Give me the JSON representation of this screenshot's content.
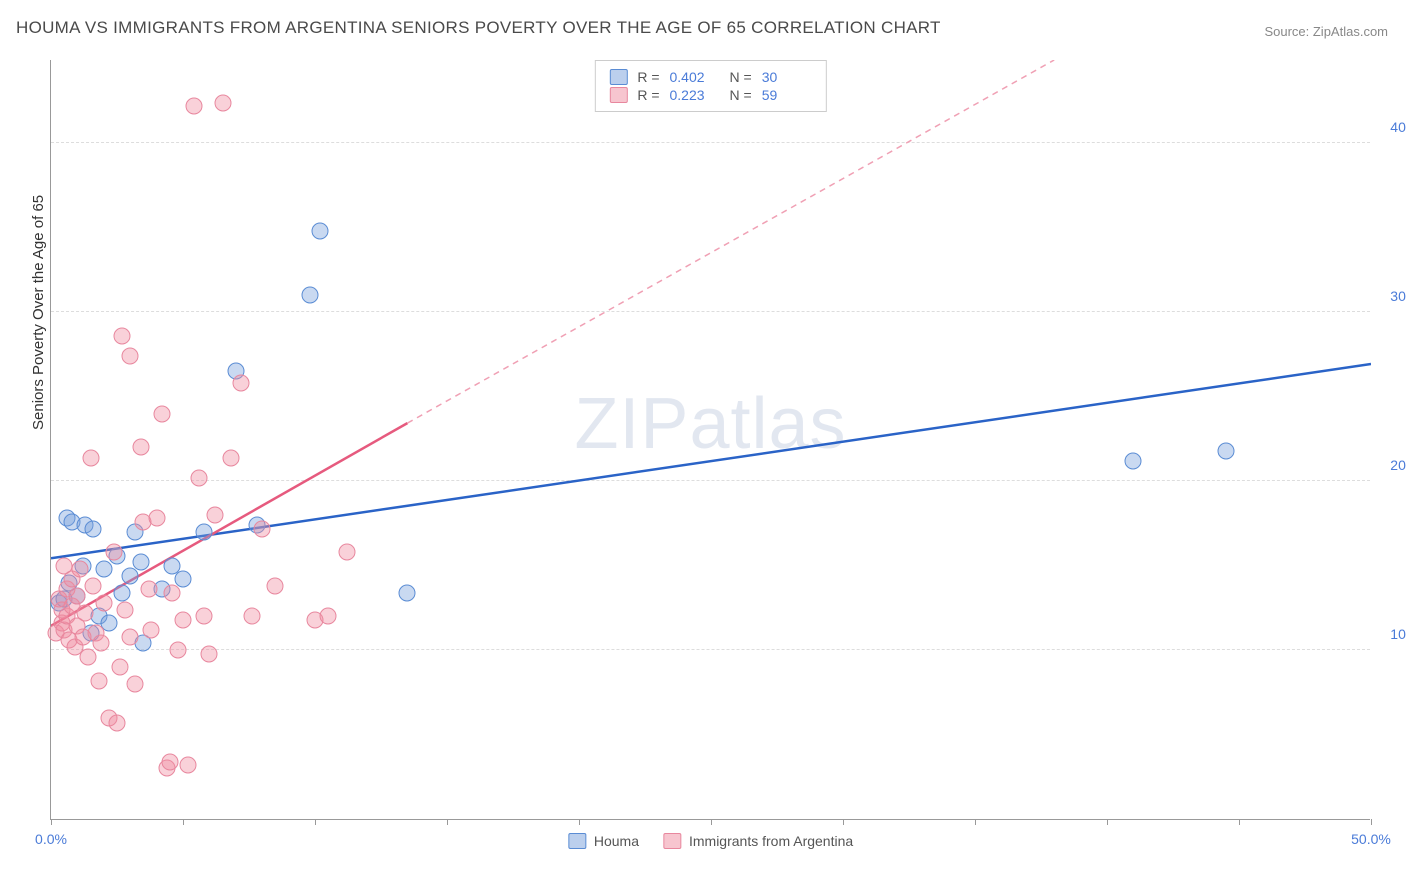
{
  "title": "HOUMA VS IMMIGRANTS FROM ARGENTINA SENIORS POVERTY OVER THE AGE OF 65 CORRELATION CHART",
  "source": "Source: ZipAtlas.com",
  "y_axis_title": "Seniors Poverty Over the Age of 65",
  "watermark": "ZIPatlas",
  "chart": {
    "type": "scatter",
    "xlim": [
      0,
      50
    ],
    "ylim": [
      0,
      45
    ],
    "x_ticks": [
      0,
      5,
      10,
      15,
      20,
      25,
      30,
      35,
      40,
      45,
      50
    ],
    "y_ticks": [
      10,
      20,
      30,
      40
    ],
    "x_tick_labels": {
      "0": "0.0%",
      "50": "50.0%"
    },
    "y_tick_labels": {
      "10": "10.0%",
      "20": "20.0%",
      "30": "30.0%",
      "40": "40.0%"
    },
    "background_color": "#ffffff",
    "grid_color": "#dddddd",
    "axis_label_color": "#4a7bd8",
    "series": [
      {
        "name": "Houma",
        "color_fill": "rgba(120,160,220,0.4)",
        "color_stroke": "#5a8cd4",
        "marker_size": 17,
        "R": "0.402",
        "N": "30",
        "trend": {
          "x1": 0,
          "y1": 15.5,
          "x2": 50,
          "y2": 27,
          "color": "#2a63c7",
          "dashed": false,
          "width": 2.5
        },
        "points": [
          [
            0.3,
            12.8
          ],
          [
            0.5,
            13.0
          ],
          [
            0.6,
            17.8
          ],
          [
            0.7,
            14.0
          ],
          [
            0.8,
            17.6
          ],
          [
            1.0,
            13.2
          ],
          [
            1.2,
            15.0
          ],
          [
            1.3,
            17.4
          ],
          [
            1.5,
            11.0
          ],
          [
            1.6,
            17.2
          ],
          [
            1.8,
            12.0
          ],
          [
            2.0,
            14.8
          ],
          [
            2.2,
            11.6
          ],
          [
            2.5,
            15.6
          ],
          [
            2.7,
            13.4
          ],
          [
            3.0,
            14.4
          ],
          [
            3.2,
            17.0
          ],
          [
            3.4,
            15.2
          ],
          [
            3.5,
            10.4
          ],
          [
            4.2,
            13.6
          ],
          [
            4.6,
            15.0
          ],
          [
            5.0,
            14.2
          ],
          [
            5.8,
            17.0
          ],
          [
            7.0,
            26.5
          ],
          [
            7.8,
            17.4
          ],
          [
            9.8,
            31.0
          ],
          [
            10.2,
            34.8
          ],
          [
            13.5,
            13.4
          ],
          [
            41.0,
            21.2
          ],
          [
            44.5,
            21.8
          ]
        ]
      },
      {
        "name": "Immigrants from Argentina",
        "color_fill": "rgba(240,140,160,0.4)",
        "color_stroke": "#e8879e",
        "marker_size": 17,
        "R": "0.223",
        "N": "59",
        "trend": {
          "x1": 0,
          "y1": 11.5,
          "x2": 13.5,
          "y2": 23.5,
          "color": "#e65a7e",
          "dashed": false,
          "width": 2.5
        },
        "trend_ext": {
          "x1": 13.5,
          "y1": 23.5,
          "x2": 38,
          "y2": 45,
          "color": "#f0a0b4",
          "dashed": true,
          "width": 1.5
        },
        "points": [
          [
            0.2,
            11.0
          ],
          [
            0.3,
            13.0
          ],
          [
            0.4,
            12.4
          ],
          [
            0.4,
            11.6
          ],
          [
            0.5,
            15.0
          ],
          [
            0.5,
            11.2
          ],
          [
            0.6,
            12.0
          ],
          [
            0.6,
            13.6
          ],
          [
            0.7,
            10.6
          ],
          [
            0.8,
            14.2
          ],
          [
            0.8,
            12.6
          ],
          [
            0.9,
            10.2
          ],
          [
            1.0,
            11.4
          ],
          [
            1.0,
            13.2
          ],
          [
            1.1,
            14.8
          ],
          [
            1.2,
            10.8
          ],
          [
            1.3,
            12.2
          ],
          [
            1.4,
            9.6
          ],
          [
            1.5,
            21.4
          ],
          [
            1.6,
            13.8
          ],
          [
            1.7,
            11.0
          ],
          [
            1.8,
            8.2
          ],
          [
            1.9,
            10.4
          ],
          [
            2.0,
            12.8
          ],
          [
            2.2,
            6.0
          ],
          [
            2.4,
            15.8
          ],
          [
            2.5,
            5.7
          ],
          [
            2.6,
            9.0
          ],
          [
            2.7,
            28.6
          ],
          [
            2.8,
            12.4
          ],
          [
            3.0,
            10.8
          ],
          [
            3.0,
            27.4
          ],
          [
            3.2,
            8.0
          ],
          [
            3.4,
            22.0
          ],
          [
            3.5,
            17.6
          ],
          [
            3.7,
            13.6
          ],
          [
            3.8,
            11.2
          ],
          [
            4.0,
            17.8
          ],
          [
            4.2,
            24.0
          ],
          [
            4.4,
            3.0
          ],
          [
            4.5,
            3.4
          ],
          [
            4.6,
            13.4
          ],
          [
            4.8,
            10.0
          ],
          [
            5.0,
            11.8
          ],
          [
            5.2,
            3.2
          ],
          [
            5.4,
            42.2
          ],
          [
            5.6,
            20.2
          ],
          [
            5.8,
            12.0
          ],
          [
            6.0,
            9.8
          ],
          [
            6.2,
            18.0
          ],
          [
            6.5,
            42.4
          ],
          [
            6.8,
            21.4
          ],
          [
            7.2,
            25.8
          ],
          [
            7.6,
            12.0
          ],
          [
            8.0,
            17.2
          ],
          [
            8.5,
            13.8
          ],
          [
            10.0,
            11.8
          ],
          [
            10.5,
            12.0
          ],
          [
            11.2,
            15.8
          ]
        ]
      }
    ]
  },
  "legend_top": {
    "R_label": "R =",
    "N_label": "N ="
  },
  "legend_bottom": {
    "label1": "Houma",
    "label2": "Immigrants from Argentina"
  }
}
